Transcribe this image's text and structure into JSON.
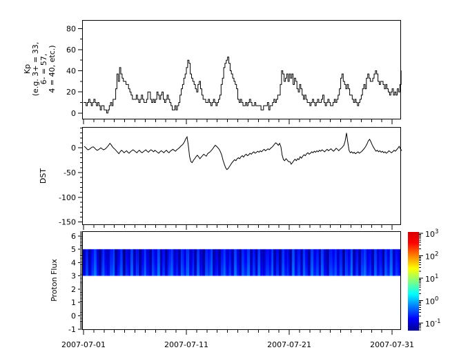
{
  "figure": {
    "background": "#ffffff",
    "line_color": "#000000",
    "x_axis": {
      "start": "2007-07-01",
      "end": "2007-08-01",
      "major_tick_days": [
        1,
        11,
        21,
        31
      ],
      "tick_labels": [
        "2007-07-01",
        "2007-07-11",
        "2007-07-21",
        "2007-07-31"
      ],
      "minor_tick_interval_days": 1
    }
  },
  "chart_data": [
    {
      "id": "kp",
      "type": "line",
      "style": "step",
      "ylabel_lines": [
        "Kp",
        "(e.g. 3+ = 33,",
        "6- = 57,",
        "4 = 40, etc.)"
      ],
      "y_ticks": [
        0,
        20,
        40,
        60,
        80
      ],
      "y_minor_interval": 10,
      "ylim": [
        -6,
        88
      ],
      "sample_hours": 3,
      "values": [
        10,
        10,
        7,
        10,
        13,
        10,
        7,
        10,
        13,
        10,
        7,
        10,
        7,
        3,
        7,
        7,
        3,
        3,
        0,
        3,
        7,
        10,
        7,
        13,
        13,
        23,
        37,
        30,
        43,
        37,
        33,
        30,
        30,
        27,
        27,
        23,
        20,
        17,
        13,
        13,
        13,
        17,
        13,
        10,
        13,
        17,
        13,
        10,
        10,
        13,
        20,
        20,
        13,
        10,
        13,
        10,
        13,
        20,
        17,
        13,
        17,
        20,
        13,
        10,
        13,
        17,
        13,
        10,
        7,
        3,
        3,
        7,
        3,
        7,
        10,
        17,
        23,
        27,
        33,
        37,
        43,
        50,
        47,
        37,
        33,
        30,
        27,
        23,
        20,
        27,
        30,
        23,
        17,
        13,
        13,
        10,
        10,
        13,
        10,
        7,
        10,
        13,
        10,
        7,
        10,
        13,
        17,
        27,
        33,
        43,
        47,
        50,
        53,
        47,
        40,
        37,
        33,
        30,
        27,
        23,
        13,
        10,
        13,
        10,
        7,
        7,
        10,
        7,
        10,
        13,
        10,
        7,
        7,
        10,
        7,
        7,
        7,
        7,
        3,
        3,
        7,
        7,
        7,
        10,
        3,
        7,
        7,
        10,
        13,
        10,
        13,
        17,
        17,
        27,
        40,
        37,
        30,
        33,
        37,
        30,
        37,
        33,
        37,
        27,
        33,
        30,
        23,
        20,
        27,
        23,
        17,
        13,
        17,
        13,
        10,
        10,
        7,
        10,
        13,
        10,
        7,
        10,
        13,
        10,
        10,
        13,
        17,
        10,
        7,
        10,
        13,
        10,
        7,
        7,
        10,
        13,
        10,
        13,
        17,
        23,
        33,
        37,
        30,
        27,
        23,
        27,
        23,
        17,
        17,
        13,
        10,
        13,
        10,
        7,
        10,
        13,
        17,
        23,
        27,
        23,
        33,
        37,
        33,
        30,
        30,
        33,
        37,
        40,
        37,
        30,
        27,
        30,
        30,
        27,
        23,
        27,
        23,
        20,
        17,
        20,
        23,
        17,
        20,
        17,
        23,
        20,
        27,
        40
      ]
    },
    {
      "id": "dst",
      "type": "line",
      "style": "line",
      "ylabel": "DST",
      "y_ticks": [
        0,
        -50,
        -100,
        -150
      ],
      "y_minor_interval": 10,
      "ylim": [
        -156,
        42
      ],
      "sample_hours": 3,
      "values": [
        3,
        1,
        -2,
        -4,
        -3,
        -1,
        1,
        2,
        0,
        -3,
        -5,
        -4,
        -2,
        0,
        -2,
        -4,
        -3,
        -1,
        2,
        5,
        9,
        6,
        2,
        -1,
        -3,
        -6,
        -9,
        -12,
        -8,
        -5,
        -7,
        -10,
        -8,
        -6,
        -9,
        -11,
        -8,
        -6,
        -4,
        -6,
        -8,
        -10,
        -7,
        -5,
        -8,
        -10,
        -8,
        -6,
        -4,
        -7,
        -9,
        -6,
        -4,
        -6,
        -8,
        -5,
        -7,
        -9,
        -11,
        -8,
        -6,
        -8,
        -10,
        -7,
        -5,
        -8,
        -10,
        -7,
        -5,
        -3,
        -5,
        -7,
        -4,
        -2,
        0,
        3,
        5,
        8,
        12,
        18,
        22,
        5,
        -18,
        -28,
        -30,
        -25,
        -22,
        -18,
        -15,
        -18,
        -22,
        -19,
        -16,
        -13,
        -15,
        -17,
        -12,
        -10,
        -8,
        -5,
        -2,
        2,
        5,
        3,
        0,
        -3,
        -8,
        -15,
        -25,
        -33,
        -40,
        -44,
        -42,
        -38,
        -34,
        -30,
        -27,
        -24,
        -26,
        -22,
        -20,
        -22,
        -18,
        -16,
        -19,
        -15,
        -13,
        -16,
        -14,
        -11,
        -13,
        -10,
        -8,
        -11,
        -9,
        -7,
        -9,
        -6,
        -8,
        -5,
        -3,
        -6,
        -4,
        -2,
        -4,
        -1,
        1,
        4,
        7,
        10,
        8,
        5,
        9,
        2,
        -15,
        -24,
        -26,
        -22,
        -25,
        -28,
        -28,
        -33,
        -30,
        -26,
        -23,
        -26,
        -22,
        -24,
        -18,
        -21,
        -17,
        -14,
        -16,
        -12,
        -10,
        -13,
        -11,
        -8,
        -10,
        -7,
        -9,
        -6,
        -8,
        -5,
        -7,
        -4,
        -6,
        -8,
        -5,
        -3,
        -6,
        -4,
        -2,
        -5,
        -7,
        -4,
        -1,
        -3,
        -6,
        -3,
        -1,
        2,
        5,
        14,
        30,
        12,
        -5,
        -10,
        -8,
        -11,
        -9,
        -12,
        -10,
        -8,
        -11,
        -9,
        -7,
        -4,
        -1,
        3,
        8,
        14,
        17,
        12,
        6,
        1,
        -3,
        -7,
        -5,
        -8,
        -6,
        -9,
        -7,
        -10,
        -8,
        -11,
        -9,
        -6,
        -8,
        -10,
        -8,
        -5,
        -7,
        -4,
        -1,
        3,
        -2,
        -6
      ]
    },
    {
      "id": "proton_flux",
      "type": "heatmap",
      "ylabel": "Proton Flux",
      "y_ticks": [
        -1,
        0,
        1,
        2,
        3,
        4,
        5,
        6
      ],
      "y_minor_interval": 0.1,
      "ylim": [
        -1.06,
        6.35
      ],
      "band_y_range": [
        3,
        5
      ],
      "columns": [
        0.12,
        0.31,
        0.09,
        0.22,
        0.44,
        0.15,
        0.08,
        0.35,
        0.18,
        0.11,
        0.27,
        0.41,
        0.1,
        0.19,
        0.36,
        0.08,
        0.25,
        0.13,
        0.48,
        0.12,
        0.3,
        0.09,
        0.21,
        0.38,
        0.14,
        0.1,
        0.33,
        0.17,
        0.45,
        0.11,
        0.24,
        0.08,
        0.29,
        0.4,
        0.13,
        0.2,
        0.09,
        0.34,
        0.16,
        0.47,
        0.12,
        0.26,
        0.1,
        0.37,
        0.15,
        0.08,
        0.31,
        0.22,
        0.43,
        0.11,
        0.18,
        0.09,
        0.28,
        0.39,
        0.14,
        0.23,
        0.1,
        0.46,
        0.17,
        0.08,
        0.32,
        0.21,
        0.42,
        0.12,
        0.25,
        0.09,
        0.36,
        0.15,
        0.11,
        0.3,
        0.19,
        0.44,
        0.1,
        0.27,
        0.08,
        0.38,
        0.16,
        0.23,
        0.09,
        0.48,
        0.13,
        0.29,
        0.11,
        0.35,
        0.2,
        0.08,
        0.41,
        0.17,
        0.26,
        0.1,
        0.45,
        0.14,
        0.09,
        0.33,
        0.22,
        0.39,
        0.12,
        0.28,
        0.08,
        0.36,
        0.18,
        0.47,
        0.11,
        0.24,
        0.09,
        0.31,
        0.4,
        0.15,
        0.21,
        0.1,
        0.43,
        0.13,
        0.27,
        0.08,
        0.34,
        0.19,
        0.46,
        0.12,
        0.25,
        0.16
      ],
      "colorbar": {
        "scale": "log",
        "colormap": "jet",
        "tick_exponents": [
          3,
          2,
          1,
          0,
          -1
        ],
        "tick_labels": [
          "10^3",
          "10^2",
          "10^1",
          "10^0",
          "10^-1"
        ],
        "range_exponents": [
          -1.43,
          3.06
        ]
      }
    }
  ]
}
